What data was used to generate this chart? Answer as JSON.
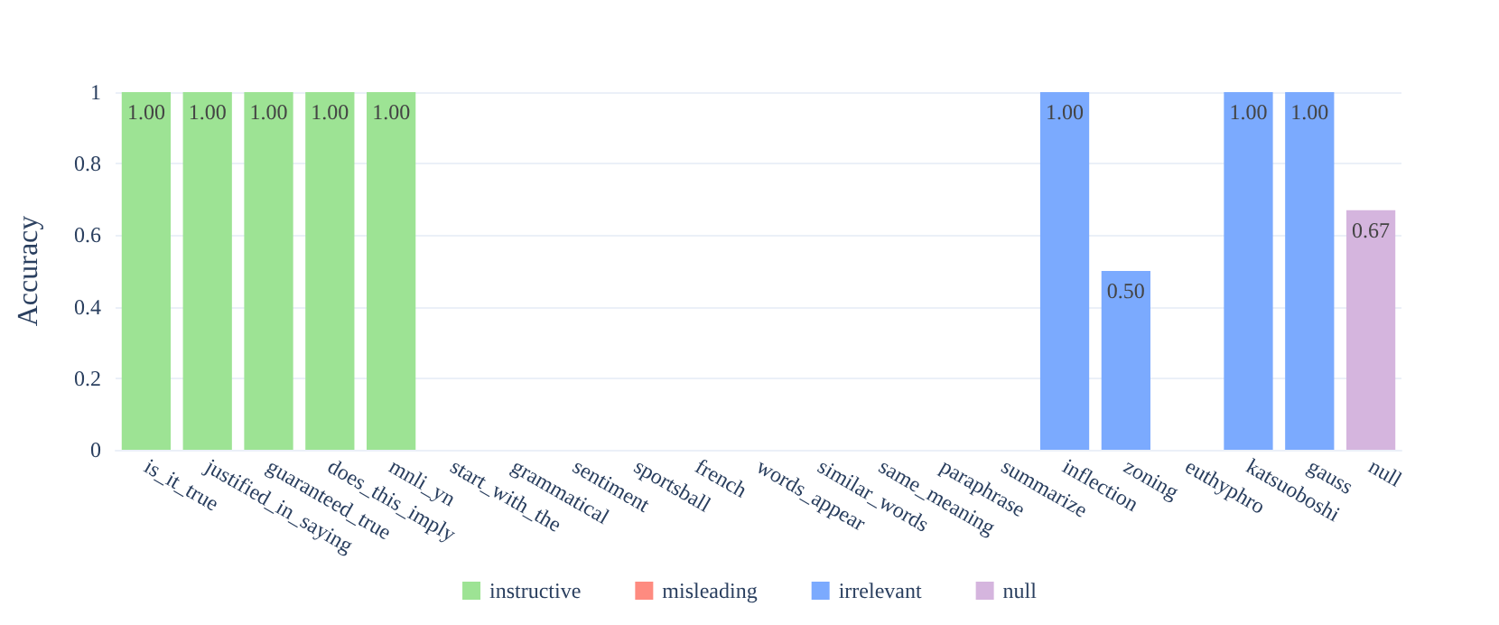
{
  "chart_data": {
    "type": "bar",
    "ylabel": "Accuracy",
    "categories": [
      "is_it_true",
      "justified_in_saying",
      "guaranteed_true",
      "does_this_imply",
      "mnli_yn",
      "start_with_the",
      "grammatical",
      "sentiment",
      "sportsball",
      "french",
      "words_appear",
      "similar_words",
      "same_meaning",
      "paraphrase",
      "summarize",
      "inflection",
      "zoning",
      "euthyphro",
      "katsuoboshi",
      "gauss",
      "null"
    ],
    "series": [
      {
        "name": "instructive",
        "color": "#9de394",
        "values": [
          1,
          1,
          1,
          1,
          1,
          null,
          null,
          null,
          null,
          null,
          null,
          null,
          null,
          null,
          null,
          null,
          null,
          null,
          null,
          null,
          null
        ],
        "value_labels": [
          "1.00",
          "1.00",
          "1.00",
          "1.00",
          "1.00",
          null,
          null,
          null,
          null,
          null,
          null,
          null,
          null,
          null,
          null,
          null,
          null,
          null,
          null,
          null,
          null
        ]
      },
      {
        "name": "misleading",
        "color": "#fe8b80",
        "values": [
          null,
          null,
          null,
          null,
          null,
          0,
          0,
          0,
          0,
          0,
          0,
          0,
          0,
          0,
          0,
          null,
          null,
          null,
          null,
          null,
          null
        ],
        "value_labels": [
          null,
          null,
          null,
          null,
          null,
          null,
          null,
          null,
          null,
          null,
          null,
          null,
          null,
          null,
          null,
          null,
          null,
          null,
          null,
          null,
          null
        ]
      },
      {
        "name": "irrelevant",
        "color": "#7baafe",
        "values": [
          null,
          null,
          null,
          null,
          null,
          null,
          null,
          null,
          null,
          null,
          null,
          null,
          null,
          null,
          null,
          1,
          0.5,
          0,
          1,
          1,
          null
        ],
        "value_labels": [
          null,
          null,
          null,
          null,
          null,
          null,
          null,
          null,
          null,
          null,
          null,
          null,
          null,
          null,
          null,
          "1.00",
          "0.50",
          null,
          "1.00",
          "1.00",
          null
        ]
      },
      {
        "name": "null",
        "color": "#d5b5de",
        "values": [
          null,
          null,
          null,
          null,
          null,
          null,
          null,
          null,
          null,
          null,
          null,
          null,
          null,
          null,
          null,
          null,
          null,
          null,
          null,
          null,
          0.67
        ],
        "value_labels": [
          null,
          null,
          null,
          null,
          null,
          null,
          null,
          null,
          null,
          null,
          null,
          null,
          null,
          null,
          null,
          null,
          null,
          null,
          null,
          null,
          "0.67"
        ]
      }
    ],
    "ylim": [
      0,
      1
    ],
    "yticks": [
      0,
      0.2,
      0.4,
      0.6,
      0.8,
      1
    ],
    "grid": "y",
    "legend": "bottom"
  }
}
